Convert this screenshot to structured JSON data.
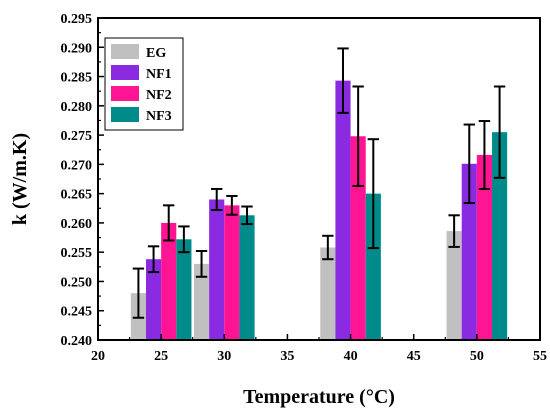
{
  "chart_data": {
    "type": "bar",
    "title": "",
    "xlabel": "Temperature (°C)",
    "ylabel": "k (W/m.K)",
    "xlim": [
      20,
      55
    ],
    "ylim": [
      0.24,
      0.295
    ],
    "xticks": [
      20,
      25,
      30,
      35,
      40,
      45,
      50,
      55
    ],
    "yticks": [
      0.24,
      0.245,
      0.25,
      0.255,
      0.26,
      0.265,
      0.27,
      0.275,
      0.28,
      0.285,
      0.29,
      0.295
    ],
    "ytick_labels": [
      "0.240",
      "0.245",
      "0.250",
      "0.255",
      "0.260",
      "0.265",
      "0.270",
      "0.275",
      "0.280",
      "0.285",
      "0.290",
      "0.295"
    ],
    "grid": false,
    "legend_position": "top-left",
    "bar_group_x": [
      25,
      30,
      40,
      50
    ],
    "series": [
      {
        "name": "EG",
        "color": "#c0c0c0",
        "values": [
          0.248,
          0.253,
          0.2558,
          0.2586
        ],
        "errors": [
          0.0042,
          0.0022,
          0.002,
          0.0027
        ]
      },
      {
        "name": "NF1",
        "color": "#8a2be2",
        "values": [
          0.2538,
          0.264,
          0.2843,
          0.2701
        ],
        "errors": [
          0.0022,
          0.0018,
          0.0055,
          0.0067
        ]
      },
      {
        "name": "NF2",
        "color": "#ff1493",
        "values": [
          0.26,
          0.263,
          0.2748,
          0.2716
        ],
        "errors": [
          0.003,
          0.0016,
          0.0085,
          0.0058
        ]
      },
      {
        "name": "NF3",
        "color": "#008b8b",
        "values": [
          0.2572,
          0.2613,
          0.265,
          0.2755
        ],
        "errors": [
          0.0022,
          0.0015,
          0.0093,
          0.0078
        ]
      }
    ]
  }
}
